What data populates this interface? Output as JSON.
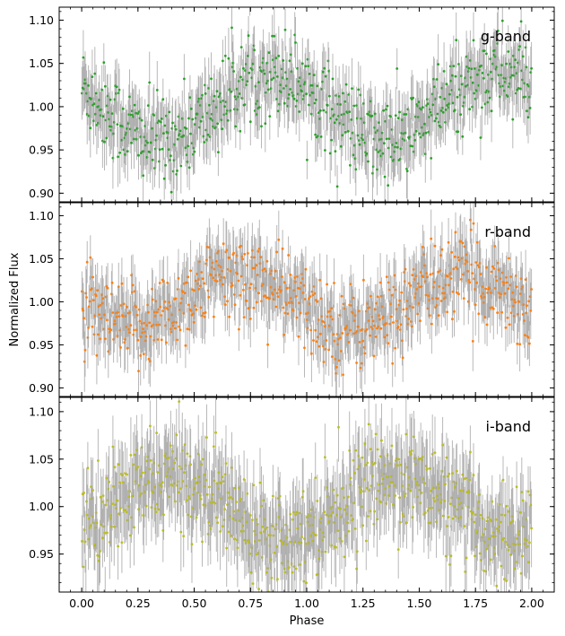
{
  "figure": {
    "ylabel": "Normalized Flux",
    "xlabel": "Phase"
  },
  "chart_data": [
    {
      "type": "scatter",
      "band": "g-band",
      "color": "#2ca02c",
      "errorbar_color": "#a0a0a0",
      "xlim": [
        -0.1,
        2.1
      ],
      "ylim": [
        0.89,
        1.115
      ],
      "xticks": [
        "0.00",
        "0.25",
        "0.50",
        "0.75",
        "1.00",
        "1.25",
        "1.50",
        "1.75",
        "2.00"
      ],
      "xtick_values": [
        0,
        0.25,
        0.5,
        0.75,
        1.0,
        1.25,
        1.5,
        1.75,
        2.0
      ],
      "yticks": [
        "0.90",
        "0.95",
        "1.00",
        "1.05",
        "1.10"
      ],
      "ytick_values": [
        0.9,
        0.95,
        1.0,
        1.05,
        1.1
      ],
      "model": {
        "kind": "sinusoid",
        "mean": 1.0,
        "amplitude": 0.04,
        "peak_phase": 0.85,
        "noise": 0.025,
        "error": 0.03
      }
    },
    {
      "type": "scatter",
      "band": "r-band",
      "color": "#ff7f0e",
      "errorbar_color": "#a0a0a0",
      "xlim": [
        -0.1,
        2.1
      ],
      "ylim": [
        0.89,
        1.115
      ],
      "xticks": [
        "0.00",
        "0.25",
        "0.50",
        "0.75",
        "1.00",
        "1.25",
        "1.50",
        "1.75",
        "2.00"
      ],
      "xtick_values": [
        0,
        0.25,
        0.5,
        0.75,
        1.0,
        1.25,
        1.5,
        1.75,
        2.0
      ],
      "yticks": [
        "0.90",
        "0.95",
        "1.00",
        "1.05",
        "1.10"
      ],
      "ytick_values": [
        0.9,
        0.95,
        1.0,
        1.05,
        1.1
      ],
      "model": {
        "kind": "sinusoid",
        "mean": 1.0,
        "amplitude": 0.03,
        "peak_phase": 0.7,
        "noise": 0.025,
        "error": 0.03
      }
    },
    {
      "type": "scatter",
      "band": "i-band",
      "color": "#bcbd22",
      "errorbar_color": "#a0a0a0",
      "xlim": [
        -0.1,
        2.1
      ],
      "ylim": [
        0.91,
        1.115
      ],
      "xticks": [
        "0.00",
        "0.25",
        "0.50",
        "0.75",
        "1.00",
        "1.25",
        "1.50",
        "1.75",
        "2.00"
      ],
      "xtick_values": [
        0,
        0.25,
        0.5,
        0.75,
        1.0,
        1.25,
        1.5,
        1.75,
        2.0
      ],
      "yticks": [
        "0.95",
        "1.00",
        "1.05",
        "1.10"
      ],
      "ytick_values": [
        0.95,
        1.0,
        1.05,
        1.1
      ],
      "model": {
        "kind": "sinusoid",
        "mean": 1.0,
        "amplitude": 0.03,
        "peak_phase": 0.4,
        "noise": 0.025,
        "error": 0.035
      }
    }
  ]
}
